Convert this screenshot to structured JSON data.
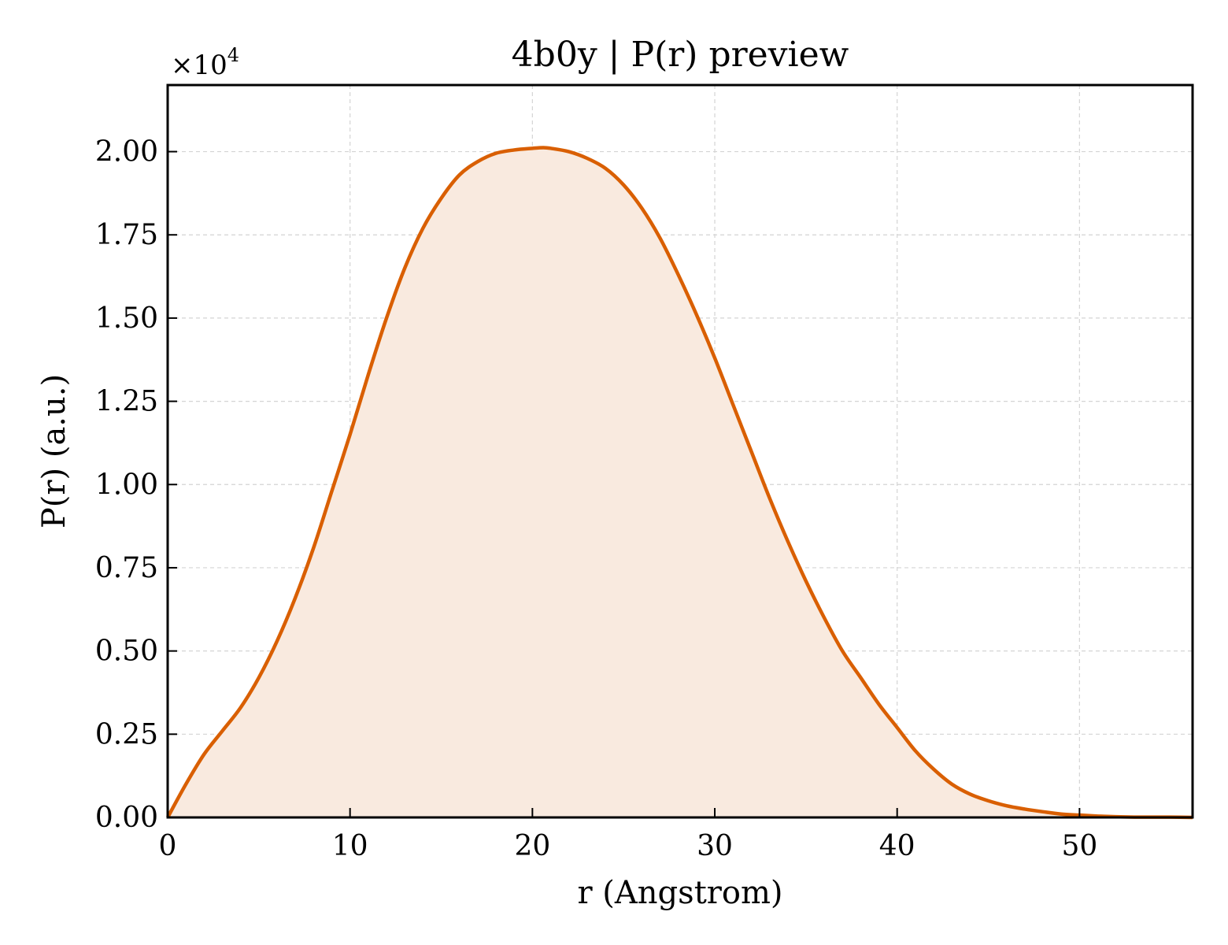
{
  "chart_data": {
    "type": "area",
    "title": "4b0y | P(r) preview",
    "xlabel": "r (Angstrom)",
    "ylabel": "P(r) (a.u.)",
    "y_multiplier": "×10",
    "y_multiplier_exponent": "4",
    "xlim": [
      0,
      56.2
    ],
    "ylim": [
      0,
      2.2
    ],
    "xticks": [
      0,
      10,
      20,
      30,
      40,
      50
    ],
    "xtick_labels": [
      "0",
      "10",
      "20",
      "30",
      "40",
      "50"
    ],
    "yticks": [
      0,
      0.25,
      0.5,
      0.75,
      1.0,
      1.25,
      1.5,
      1.75,
      2.0
    ],
    "ytick_labels": [
      "0.00",
      "0.25",
      "0.50",
      "0.75",
      "1.00",
      "1.25",
      "1.50",
      "1.75",
      "2.00"
    ],
    "grid": true,
    "line_color": "#d95f02",
    "fill_color": "#f9eadf",
    "series": [
      {
        "x": [
          0,
          1,
          2,
          3,
          4,
          5,
          6,
          7,
          8,
          9,
          10,
          11,
          12,
          13,
          14,
          15,
          16,
          17,
          18,
          19,
          20,
          20.6,
          21,
          22,
          23,
          24,
          25,
          26,
          27,
          28,
          29,
          30,
          31,
          32,
          33,
          34,
          35,
          36,
          37,
          38,
          39,
          40,
          41,
          42,
          43,
          44,
          45,
          46,
          47,
          48,
          49,
          50,
          51,
          52,
          53,
          54,
          55,
          56.2
        ],
        "y": [
          0,
          0.1,
          0.19,
          0.26,
          0.33,
          0.42,
          0.53,
          0.66,
          0.81,
          0.98,
          1.15,
          1.33,
          1.5,
          1.65,
          1.77,
          1.86,
          1.93,
          1.97,
          1.995,
          2.005,
          2.01,
          2.012,
          2.01,
          2.0,
          1.98,
          1.95,
          1.9,
          1.83,
          1.74,
          1.63,
          1.51,
          1.38,
          1.24,
          1.1,
          0.96,
          0.83,
          0.71,
          0.6,
          0.5,
          0.42,
          0.34,
          0.27,
          0.2,
          0.145,
          0.1,
          0.07,
          0.05,
          0.035,
          0.025,
          0.017,
          0.01,
          0.007,
          0.004,
          0.002,
          0.001,
          0.001,
          0.001,
          0
        ]
      }
    ]
  }
}
